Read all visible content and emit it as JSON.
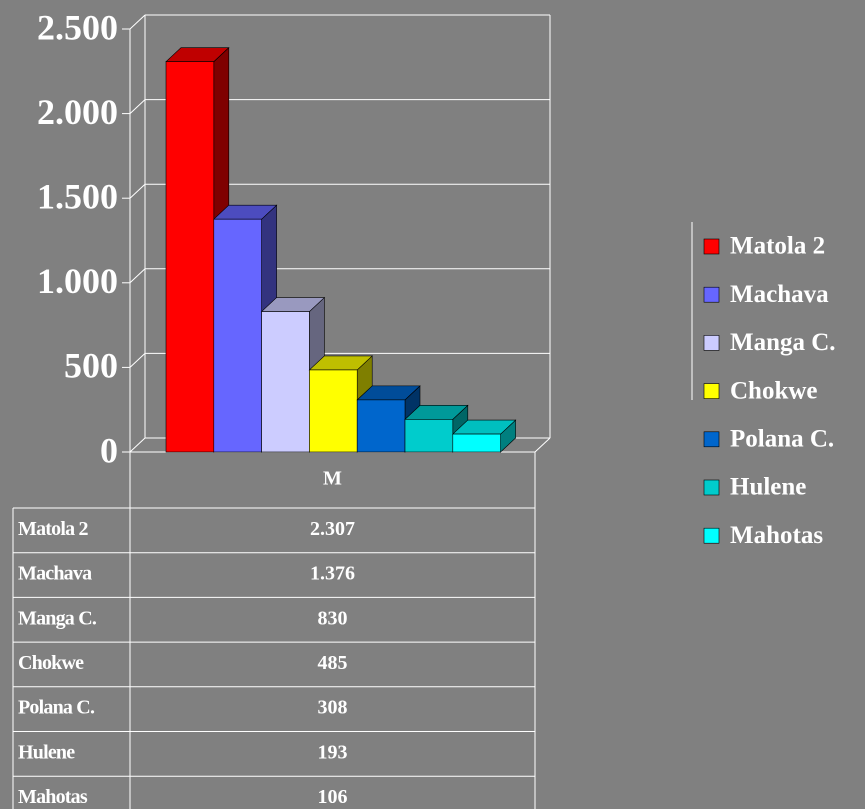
{
  "chart_data": {
    "type": "bar3d",
    "categories": [
      "M"
    ],
    "series": [
      {
        "name": "Matola 2",
        "color": "#ff0000",
        "values": [
          2307
        ],
        "value_labels": [
          "2.307"
        ]
      },
      {
        "name": "Machava",
        "color": "#6666ff",
        "values": [
          1376
        ],
        "value_labels": [
          "1.376"
        ]
      },
      {
        "name": "Manga C.",
        "color": "#ccccff",
        "values": [
          830
        ],
        "value_labels": [
          "830"
        ]
      },
      {
        "name": "Chokwe",
        "color": "#ffff00",
        "values": [
          485
        ],
        "value_labels": [
          "485"
        ]
      },
      {
        "name": "Polana C.",
        "color": "#0066cc",
        "values": [
          308
        ],
        "value_labels": [
          "308"
        ]
      },
      {
        "name": "Hulene",
        "color": "#00cccc",
        "values": [
          193
        ],
        "value_labels": [
          "193"
        ]
      },
      {
        "name": "Mahotas",
        "color": "#00ffff",
        "values": [
          106
        ],
        "value_labels": [
          "106"
        ]
      }
    ],
    "ylim": [
      0,
      2500
    ],
    "yticks": [
      0,
      500,
      {
        "value": 1000,
        "label": "1.000"
      },
      {
        "value": 1500,
        "label": "1.500"
      },
      {
        "value": 2000,
        "label": "2.000"
      },
      {
        "value": 2500,
        "label": "2.500"
      }
    ],
    "grid": true,
    "legend": "right"
  }
}
